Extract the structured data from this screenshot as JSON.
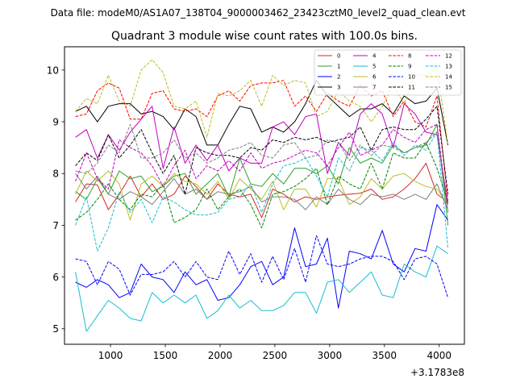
{
  "chart_data": {
    "type": "line",
    "suptitle": "Data file: modeM0/AS1A07_138T04_9000003462_23423cztM0_level2_quad_clean.evt",
    "title": "Quadrant 3 module wise count rates with 100.0s bins.",
    "xlabel": "",
    "ylabel": "",
    "x_offset_label": "+3.1783e8",
    "xlim": [
      580,
      4230
    ],
    "ylim": [
      4.7,
      10.45
    ],
    "xticks": [
      1000,
      1500,
      2000,
      2500,
      3000,
      3500,
      4000
    ],
    "xtick_labels": [
      "1000",
      "1500",
      "2000",
      "2500",
      "3000",
      "3500",
      "4000"
    ],
    "yticks": [
      5,
      6,
      7,
      8,
      9,
      10
    ],
    "ytick_labels": [
      "5",
      "6",
      "7",
      "8",
      "9",
      "10"
    ],
    "x": [
      680,
      780,
      880,
      980,
      1080,
      1180,
      1280,
      1380,
      1480,
      1580,
      1680,
      1780,
      1880,
      1980,
      2080,
      2180,
      2280,
      2380,
      2480,
      2580,
      2680,
      2780,
      2880,
      2980,
      3080,
      3180,
      3280,
      3380,
      3480,
      3580,
      3680,
      3780,
      3880,
      3980,
      4080
    ],
    "legend": {
      "location": "upper right",
      "columns": 4
    },
    "series": [
      {
        "name": "0",
        "color": "#d62728",
        "dash": "solid",
        "values": [
          7.45,
          7.8,
          7.78,
          7.3,
          7.6,
          7.95,
          7.55,
          7.8,
          7.5,
          7.6,
          7.95,
          7.75,
          7.5,
          7.8,
          7.6,
          7.55,
          7.6,
          7.15,
          7.7,
          7.6,
          7.45,
          7.55,
          7.5,
          7.55,
          7.58,
          7.6,
          7.62,
          7.7,
          7.5,
          7.55,
          7.7,
          7.9,
          8.2,
          7.6,
          7.45
        ]
      },
      {
        "name": "1",
        "color": "#2ca02c",
        "dash": "solid",
        "values": [
          7.65,
          7.5,
          7.9,
          7.6,
          8.05,
          7.9,
          7.95,
          7.65,
          7.75,
          7.95,
          8.0,
          7.6,
          7.8,
          8.0,
          7.55,
          8.3,
          7.8,
          7.75,
          8.0,
          7.8,
          8.1,
          8.1,
          8.0,
          8.15,
          7.8,
          8.5,
          8.2,
          8.3,
          8.2,
          8.55,
          8.4,
          8.5,
          8.55,
          8.95,
          7.0
        ]
      },
      {
        "name": "2",
        "color": "#0000ff",
        "dash": "solid",
        "values": [
          5.9,
          5.8,
          5.95,
          5.85,
          5.6,
          5.7,
          6.25,
          6.0,
          5.95,
          5.7,
          6.1,
          5.85,
          5.95,
          5.55,
          5.6,
          5.85,
          6.2,
          6.3,
          5.85,
          6.0,
          6.95,
          6.2,
          6.25,
          6.75,
          5.4,
          6.5,
          6.45,
          6.35,
          6.9,
          6.25,
          6.1,
          6.55,
          6.5,
          7.4,
          7.1
        ]
      },
      {
        "name": "3",
        "color": "#000000",
        "dash": "solid",
        "values": [
          9.2,
          9.3,
          9.0,
          9.3,
          9.35,
          9.35,
          9.15,
          9.2,
          9.1,
          8.85,
          9.25,
          9.1,
          8.55,
          8.55,
          8.95,
          9.3,
          9.25,
          8.8,
          8.9,
          8.8,
          9.0,
          9.35,
          9.8,
          9.5,
          9.3,
          9.1,
          9.25,
          9.25,
          9.35,
          9.15,
          9.5,
          9.35,
          9.4,
          9.65,
          8.55
        ]
      },
      {
        "name": "4",
        "color": "#bf00bf",
        "dash": "solid",
        "values": [
          8.7,
          8.85,
          8.3,
          8.75,
          8.45,
          8.8,
          9.05,
          9.3,
          8.1,
          8.9,
          8.2,
          8.55,
          8.25,
          8.55,
          8.05,
          8.3,
          8.2,
          8.2,
          8.9,
          9.0,
          8.75,
          9.1,
          9.15,
          8.0,
          8.6,
          8.35,
          9.15,
          9.35,
          9.15,
          8.5,
          9.35,
          9.15,
          8.8,
          8.75,
          7.4
        ]
      },
      {
        "name": "5",
        "color": "#17becf",
        "dash": "solid",
        "values": [
          6.1,
          4.95,
          5.25,
          5.55,
          5.4,
          5.2,
          5.15,
          5.7,
          5.5,
          5.65,
          5.5,
          5.65,
          5.2,
          5.35,
          5.65,
          5.4,
          5.55,
          5.35,
          5.35,
          5.45,
          5.7,
          5.7,
          5.3,
          5.9,
          5.95,
          5.7,
          5.9,
          6.1,
          5.65,
          5.6,
          6.25,
          6.1,
          6.0,
          6.6,
          6.45
        ]
      },
      {
        "name": "6",
        "color": "#bcbd22",
        "dash": "solid",
        "values": [
          7.6,
          8.05,
          7.85,
          8.05,
          7.8,
          7.1,
          7.8,
          7.95,
          7.75,
          8.0,
          7.85,
          7.8,
          7.6,
          7.85,
          7.5,
          7.9,
          7.7,
          7.5,
          7.85,
          7.3,
          7.7,
          7.7,
          7.35,
          7.9,
          7.9,
          7.4,
          7.55,
          7.9,
          7.7,
          7.95,
          8.0,
          7.85,
          7.75,
          7.7,
          7.4
        ]
      },
      {
        "name": "7",
        "color": "#7f7f7f",
        "dash": "solid",
        "values": [
          8.0,
          7.7,
          7.95,
          7.6,
          7.5,
          7.65,
          7.55,
          7.4,
          7.65,
          7.9,
          7.6,
          7.7,
          7.5,
          7.65,
          7.6,
          7.65,
          7.75,
          7.45,
          7.55,
          7.55,
          7.5,
          7.3,
          7.55,
          7.4,
          7.7,
          7.5,
          7.4,
          7.6,
          7.55,
          7.6,
          7.5,
          7.6,
          7.5,
          7.8,
          7.3
        ]
      },
      {
        "name": "8",
        "color": "#ff0000",
        "dash": "dashed",
        "values": [
          9.1,
          9.15,
          9.6,
          9.75,
          9.65,
          9.05,
          9.05,
          9.55,
          9.6,
          9.25,
          9.2,
          9.25,
          9.1,
          9.5,
          9.6,
          9.4,
          9.7,
          9.75,
          9.75,
          9.8,
          9.3,
          9.5,
          9.2,
          9.55,
          9.4,
          9.3,
          9.7,
          9.5,
          9.6,
          9.1,
          9.4,
          9.0,
          8.9,
          9.5,
          7.45
        ]
      },
      {
        "name": "9",
        "color": "#008000",
        "dash": "dashed",
        "values": [
          7.1,
          7.25,
          7.5,
          7.8,
          7.5,
          7.3,
          7.6,
          7.55,
          7.8,
          7.05,
          7.15,
          7.3,
          7.7,
          7.3,
          7.55,
          7.7,
          7.4,
          6.95,
          7.6,
          7.65,
          7.75,
          7.9,
          8.1,
          7.4,
          7.95,
          7.8,
          7.7,
          8.2,
          7.7,
          8.4,
          8.3,
          8.3,
          8.6,
          8.1,
          7.45
        ]
      },
      {
        "name": "10",
        "color": "#0000ff",
        "dash": "dashed",
        "values": [
          6.35,
          6.3,
          5.85,
          6.3,
          6.15,
          5.65,
          6.05,
          6.05,
          6.1,
          6.3,
          6.0,
          6.3,
          6.0,
          5.95,
          6.5,
          6.05,
          6.45,
          5.9,
          6.4,
          5.95,
          6.55,
          5.9,
          6.8,
          6.25,
          6.2,
          6.25,
          6.35,
          6.4,
          6.4,
          6.3,
          5.95,
          6.35,
          6.4,
          6.25,
          5.6
        ]
      },
      {
        "name": "11",
        "color": "#000000",
        "dash": "dashed",
        "values": [
          8.15,
          8.4,
          8.25,
          8.75,
          8.3,
          8.55,
          8.85,
          8.4,
          8.0,
          8.35,
          7.6,
          8.5,
          8.4,
          8.35,
          8.35,
          8.3,
          8.5,
          8.45,
          8.65,
          8.6,
          8.7,
          8.65,
          8.7,
          8.6,
          8.65,
          8.7,
          8.9,
          8.45,
          8.85,
          8.9,
          8.85,
          8.85,
          9.05,
          9.3,
          7.6
        ]
      },
      {
        "name": "12",
        "color": "#bf00bf",
        "dash": "dashed",
        "values": [
          7.85,
          8.4,
          7.9,
          7.7,
          8.65,
          8.5,
          8.4,
          8.15,
          7.75,
          8.15,
          8.45,
          7.9,
          8.15,
          8.05,
          8.25,
          8.05,
          8.4,
          8.1,
          8.2,
          8.25,
          8.35,
          8.45,
          8.4,
          8.15,
          8.5,
          8.8,
          8.35,
          8.45,
          8.55,
          8.85,
          8.7,
          8.6,
          8.85,
          8.95,
          7.25
        ]
      },
      {
        "name": "13",
        "color": "#17becf",
        "dash": "dashed",
        "values": [
          7.0,
          7.55,
          6.5,
          6.95,
          7.65,
          7.25,
          7.5,
          7.05,
          7.55,
          7.45,
          7.3,
          7.2,
          7.2,
          7.25,
          7.5,
          7.55,
          7.8,
          7.25,
          7.8,
          8.15,
          8.2,
          8.3,
          7.95,
          7.55,
          8.3,
          8.05,
          8.5,
          8.45,
          8.25,
          8.6,
          8.35,
          8.55,
          8.45,
          8.8,
          6.55
        ]
      },
      {
        "name": "14",
        "color": "#bcbd22",
        "dash": "dashed",
        "values": [
          9.2,
          9.45,
          9.35,
          9.9,
          9.4,
          9.3,
          10.0,
          10.2,
          9.95,
          9.3,
          9.25,
          9.4,
          8.7,
          9.55,
          9.5,
          9.6,
          9.8,
          9.3,
          9.9,
          9.7,
          9.8,
          9.75,
          9.1,
          9.2,
          9.6,
          9.4,
          9.3,
          9.0,
          9.3,
          9.7,
          9.35,
          9.9,
          9.9,
          10.05,
          8.55
        ]
      },
      {
        "name": "15",
        "color": "#7f7f7f",
        "dash": "dashed",
        "values": [
          8.05,
          8.0,
          8.2,
          8.55,
          8.4,
          8.95,
          8.3,
          8.3,
          8.4,
          8.65,
          8.3,
          8.4,
          8.2,
          8.3,
          8.45,
          8.5,
          8.6,
          8.35,
          8.3,
          8.55,
          8.6,
          8.3,
          8.35,
          8.65,
          8.6,
          8.25,
          8.55,
          8.35,
          8.55,
          8.5,
          8.4,
          8.5,
          8.6,
          8.8,
          7.25
        ]
      }
    ]
  }
}
